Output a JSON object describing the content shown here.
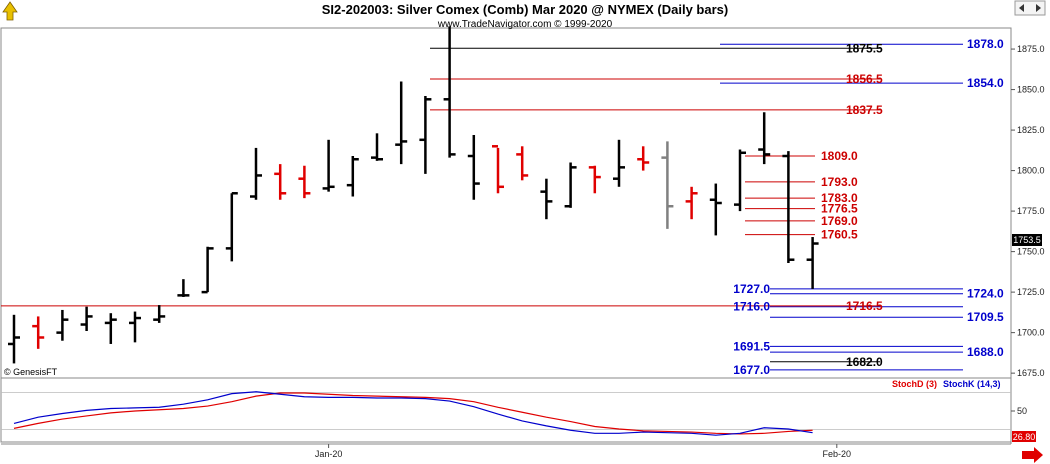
{
  "title": "SI2-202003:  Silver Comex (Comb) Mar 2020 @ NYMEX  (Daily bars)",
  "subtitle": "www.TradeNavigator.com © 1999-2020",
  "copyright": "© GenesisFT",
  "current_price_label": "1753.5",
  "colors": {
    "up": "#000000",
    "down": "#e00000",
    "neutral": "#808080",
    "support": "#0000cc",
    "resistance": "#cc0000",
    "stoch_d": "#e00000",
    "stoch_k": "#0000cc"
  },
  "icons": {
    "top_left": "up-arrow-icon",
    "top_right": "price-scale-arrows-icon",
    "bottom_right": "scroll-right-arrow-icon"
  },
  "chart_data": [
    {
      "type": "ohlc-bar",
      "x_tick_labels": [
        {
          "label": "Jan-20",
          "bar_index": 13
        },
        {
          "label": "Feb-20",
          "bar_index": 34
        }
      ],
      "y_ticks": [
        "1675.0",
        "1700.0",
        "1725.0",
        "1750.0",
        "1775.0",
        "1800.0",
        "1825.0",
        "1850.0",
        "1875.0"
      ],
      "ylim": [
        1672,
        1888
      ],
      "bars": [
        {
          "o": 1693,
          "h": 1711,
          "l": 1681,
          "c": 1697,
          "color": "up"
        },
        {
          "o": 1704,
          "h": 1710,
          "l": 1690,
          "c": 1697,
          "color": "down"
        },
        {
          "o": 1700,
          "h": 1714,
          "l": 1695,
          "c": 1708,
          "color": "up"
        },
        {
          "o": 1705,
          "h": 1716,
          "l": 1701,
          "c": 1710,
          "color": "up"
        },
        {
          "o": 1706,
          "h": 1712,
          "l": 1693,
          "c": 1708,
          "color": "up"
        },
        {
          "o": 1706,
          "h": 1713,
          "l": 1694,
          "c": 1709,
          "color": "up"
        },
        {
          "o": 1708,
          "h": 1717,
          "l": 1706,
          "c": 1710,
          "color": "up"
        },
        {
          "o": 1723,
          "h": 1733,
          "l": 1722,
          "c": 1723,
          "color": "up"
        },
        {
          "o": 1725,
          "h": 1753,
          "l": 1725,
          "c": 1752,
          "color": "up"
        },
        {
          "o": 1752,
          "h": 1786,
          "l": 1744,
          "c": 1786,
          "color": "up"
        },
        {
          "o": 1784,
          "h": 1814,
          "l": 1782,
          "c": 1797,
          "color": "up"
        },
        {
          "o": 1798,
          "h": 1804,
          "l": 1782,
          "c": 1786,
          "color": "down"
        },
        {
          "o": 1795,
          "h": 1803,
          "l": 1783,
          "c": 1786,
          "color": "down"
        },
        {
          "o": 1789,
          "h": 1819,
          "l": 1787,
          "c": 1790,
          "color": "up"
        },
        {
          "o": 1791,
          "h": 1809,
          "l": 1784,
          "c": 1807,
          "color": "up"
        },
        {
          "o": 1808,
          "h": 1823,
          "l": 1806,
          "c": 1807,
          "color": "up"
        },
        {
          "o": 1816,
          "h": 1855,
          "l": 1804,
          "c": 1818,
          "color": "up"
        },
        {
          "o": 1819,
          "h": 1846,
          "l": 1798,
          "c": 1844,
          "color": "up"
        },
        {
          "o": 1844,
          "h": 1889,
          "l": 1808,
          "c": 1810,
          "color": "up"
        },
        {
          "o": 1809,
          "h": 1822,
          "l": 1782,
          "c": 1792,
          "color": "up"
        },
        {
          "o": 1815,
          "h": 1814,
          "l": 1786,
          "c": 1790,
          "color": "down"
        },
        {
          "o": 1810,
          "h": 1815,
          "l": 1794,
          "c": 1797,
          "color": "down"
        },
        {
          "o": 1787,
          "h": 1795,
          "l": 1770,
          "c": 1781,
          "color": "up"
        },
        {
          "o": 1778,
          "h": 1805,
          "l": 1777,
          "c": 1802,
          "color": "up"
        },
        {
          "o": 1802,
          "h": 1803,
          "l": 1786,
          "c": 1796,
          "color": "down"
        },
        {
          "o": 1795,
          "h": 1819,
          "l": 1790,
          "c": 1802,
          "color": "up"
        },
        {
          "o": 1807,
          "h": 1815,
          "l": 1800,
          "c": 1805,
          "color": "down"
        },
        {
          "o": 1808,
          "h": 1818,
          "l": 1764,
          "c": 1778,
          "color": "neutral"
        },
        {
          "o": 1781,
          "h": 1790,
          "l": 1770,
          "c": 1786,
          "color": "down"
        },
        {
          "o": 1782,
          "h": 1792,
          "l": 1760,
          "c": 1780,
          "color": "up"
        },
        {
          "o": 1779,
          "h": 1813,
          "l": 1775,
          "c": 1811,
          "color": "up"
        },
        {
          "o": 1813,
          "h": 1836,
          "l": 1804,
          "c": 1810,
          "color": "up"
        },
        {
          "o": 1809,
          "h": 1812,
          "l": 1743,
          "c": 1745,
          "color": "up"
        },
        {
          "o": 1745,
          "h": 1759,
          "l": 1727,
          "c": 1755,
          "color": "up"
        }
      ],
      "levels": [
        {
          "label": "1875.5",
          "value": 1875.5,
          "color": "#000000",
          "side": "mid"
        },
        {
          "label": "1878.0",
          "value": 1878.0,
          "color": "#0000cc",
          "side": "right"
        },
        {
          "label": "1856.5",
          "value": 1856.5,
          "color": "#cc0000",
          "side": "mid"
        },
        {
          "label": "1854.0",
          "value": 1854.0,
          "color": "#0000cc",
          "side": "right"
        },
        {
          "label": "1837.5",
          "value": 1837.5,
          "color": "#cc0000",
          "side": "mid"
        },
        {
          "label": "1809.0",
          "value": 1809.0,
          "color": "#cc0000",
          "side": "mid"
        },
        {
          "label": "1793.0",
          "value": 1793.0,
          "color": "#cc0000",
          "side": "mid"
        },
        {
          "label": "1783.0",
          "value": 1783.0,
          "color": "#cc0000",
          "side": "mid"
        },
        {
          "label": "1776.5",
          "value": 1776.5,
          "color": "#cc0000",
          "side": "mid"
        },
        {
          "label": "1769.0",
          "value": 1769.0,
          "color": "#cc0000",
          "side": "mid"
        },
        {
          "label": "1760.5",
          "value": 1760.5,
          "color": "#cc0000",
          "side": "mid"
        },
        {
          "label": "1727.0",
          "value": 1727.0,
          "color": "#0000cc",
          "side": "left"
        },
        {
          "label": "1724.0",
          "value": 1724.0,
          "color": "#0000cc",
          "side": "right"
        },
        {
          "label": "1716.0",
          "value": 1716.0,
          "color": "#0000cc",
          "side": "left"
        },
        {
          "label": "1716.5",
          "value": 1716.5,
          "color": "#cc0000",
          "side": "mid"
        },
        {
          "label": "1709.5",
          "value": 1709.5,
          "color": "#0000cc",
          "side": "right"
        },
        {
          "label": "1691.5",
          "value": 1691.5,
          "color": "#0000cc",
          "side": "left"
        },
        {
          "label": "1688.0",
          "value": 1688.0,
          "color": "#0000cc",
          "side": "right"
        },
        {
          "label": "1682.0",
          "value": 1682.0,
          "color": "#000000",
          "side": "mid"
        },
        {
          "label": "1677.0",
          "value": 1677.0,
          "color": "#0000cc",
          "side": "left"
        }
      ]
    },
    {
      "type": "line",
      "ylim": [
        0,
        100
      ],
      "y_ticks": [
        "50"
      ],
      "last_value_label": "26.80",
      "series": [
        {
          "name": "StochD (3)",
          "color": "#e00000",
          "values": [
            22,
            30,
            37,
            42,
            47,
            50,
            52,
            54,
            58,
            65,
            74,
            79,
            79,
            77,
            75,
            74,
            73,
            72,
            70,
            65,
            56,
            48,
            40,
            33,
            25,
            21,
            18,
            17,
            16,
            14,
            13,
            14,
            17,
            19
          ]
        },
        {
          "name": "StochK (14,3)",
          "color": "#0000cc",
          "values": [
            30,
            40,
            46,
            51,
            54,
            55,
            56,
            61,
            68,
            78,
            81,
            77,
            73,
            72,
            72,
            71,
            71,
            70,
            66,
            57,
            45,
            34,
            26,
            19,
            14,
            14,
            16,
            15,
            14,
            11,
            14,
            23,
            21,
            15
          ]
        }
      ]
    }
  ]
}
